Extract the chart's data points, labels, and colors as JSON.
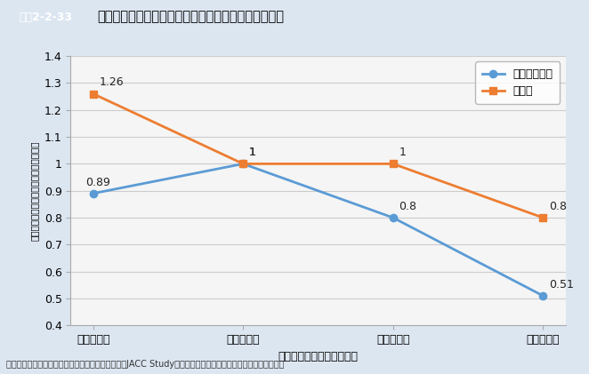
{
  "title": "１週間のスポーツ時間と循環器疾病による死亡の関係",
  "title_tag": "図表2-2-33",
  "x_labels": [
    "１時間未満",
    "１～２時間",
    "３～４時間",
    "５時間以上"
  ],
  "x_axis_label": "（１週間のスポーツ時間）",
  "y_axis_label": "（１～２時間を１とした場合の死亡率）",
  "ylim": [
    0.4,
    1.4
  ],
  "yticks": [
    0.4,
    0.5,
    0.6,
    0.7,
    0.8,
    0.9,
    1.0,
    1.1,
    1.2,
    1.3,
    1.4
  ],
  "series": [
    {
      "label": "虚血性心疾患",
      "values": [
        0.89,
        1.0,
        0.8,
        0.51
      ],
      "color": "#5b9bd5",
      "marker": "o",
      "linestyle": "-"
    },
    {
      "label": "脳梗塞",
      "values": [
        1.26,
        1.0,
        1.0,
        0.8
      ],
      "color": "#ed7d31",
      "marker": "s",
      "linestyle": "-"
    }
  ],
  "value_label_offsets": [
    [
      [
        -0.05,
        0.03
      ],
      [
        0.04,
        0.03
      ],
      [
        0.04,
        0.03
      ],
      [
        0.04,
        0.03
      ]
    ],
    [
      [
        0.04,
        0.03
      ],
      [
        0.04,
        0.03
      ],
      [
        0.04,
        0.03
      ],
      [
        0.04,
        0.03
      ]
    ]
  ],
  "source_text": "資料：文部科学省科学研究費大規模コホート研究（JACC Study）「運動と循環器疾患死亡」（野田博之）より",
  "bg_color": "#dce6f1",
  "plot_bg_color": "#f5f5f5",
  "tag_bg_color": "#1f497d",
  "tag_text_color": "#ffffff",
  "title_color": "#000000",
  "grid_color": "#cccccc"
}
